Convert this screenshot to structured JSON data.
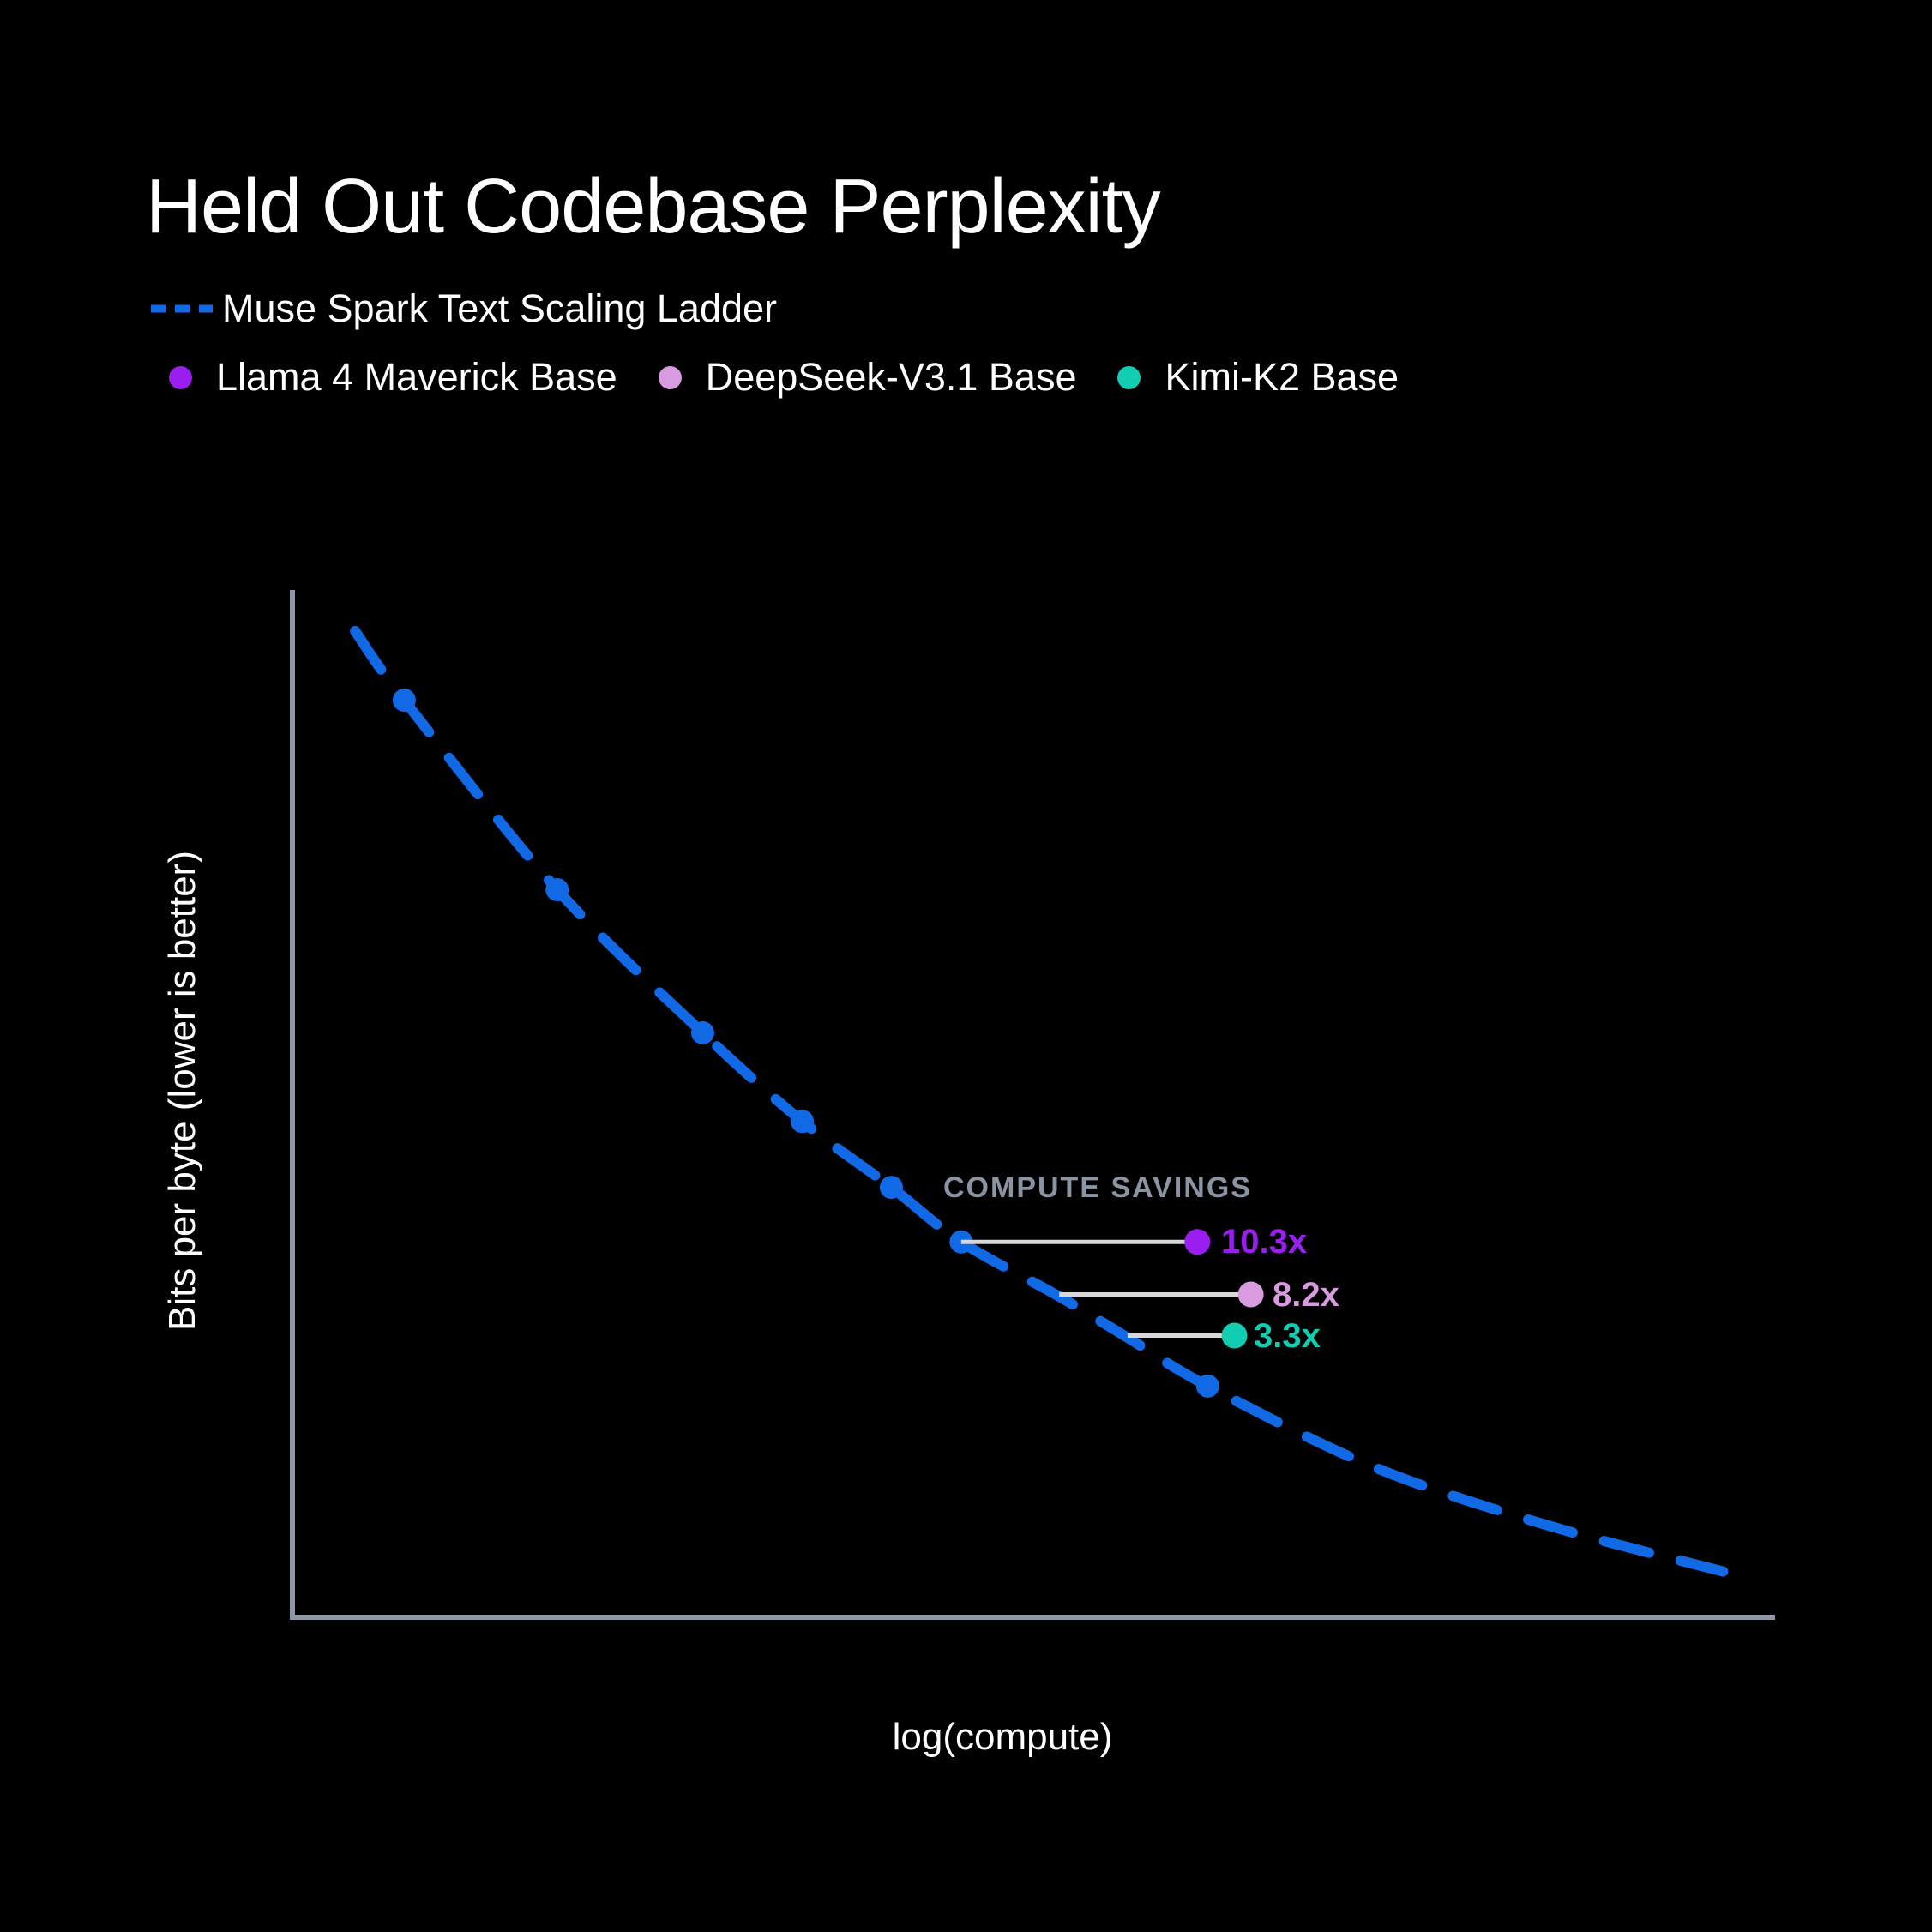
{
  "title": "Held Out Codebase Perplexity",
  "legend": {
    "ladder": {
      "label": "Muse Spark Text Scaling Ladder",
      "color": "#1169E6",
      "swatch": "dashed-line"
    },
    "models": [
      {
        "label": "Llama 4 Maverick Base",
        "color": "#9B1EF0"
      },
      {
        "label": "DeepSeek-V3.1 Base",
        "color": "#D89BDF"
      },
      {
        "label": "Kimi-K2 Base",
        "color": "#11CDB2"
      }
    ]
  },
  "axes": {
    "x_label": "log(compute)",
    "y_label": "Bits per byte (lower is better)",
    "axis_color": "#8E98A4",
    "tick_labels_visible": false
  },
  "annotation": {
    "heading": "COMPUTE SAVINGS",
    "heading_color": "#8A94A2",
    "connector_color": "#D8D8DC"
  },
  "chart_data": {
    "type": "line",
    "title": "Held Out Codebase Perplexity",
    "xlabel": "log(compute)",
    "ylabel": "Bits per byte (lower is better)",
    "grid": false,
    "legend_position": "top-left",
    "axis_ranges": "unlabeled (qualitative log-compute vs bits-per-byte)",
    "series": [
      {
        "name": "Muse Spark Text Scaling Ladder",
        "style": "dashed",
        "color": "#1169E6",
        "points_frac": [
          [
            0.044,
            0.04
          ],
          [
            0.077,
            0.107
          ],
          [
            0.18,
            0.291
          ],
          [
            0.278,
            0.43
          ],
          [
            0.345,
            0.516
          ],
          [
            0.405,
            0.58
          ],
          [
            0.452,
            0.633
          ],
          [
            0.518,
            0.686
          ],
          [
            0.564,
            0.726
          ],
          [
            0.618,
            0.773
          ],
          [
            0.729,
            0.851
          ],
          [
            0.844,
            0.907
          ],
          [
            0.965,
            0.953
          ]
        ],
        "marker_indices": [
          1,
          2,
          3,
          4,
          5,
          6,
          9
        ]
      }
    ],
    "compute_savings": [
      {
        "model": "Llama 4 Maverick Base",
        "value": "10.3x",
        "color": "#9B1EF0",
        "y_frac": 0.633,
        "x_start_frac": 0.452,
        "x_end_frac": 0.611
      },
      {
        "model": "DeepSeek-V3.1 Base",
        "value": "8.2x",
        "color": "#D89BDF",
        "y_frac": 0.684,
        "x_start_frac": 0.518,
        "x_end_frac": 0.647
      },
      {
        "model": "Kimi-K2 Base",
        "value": "3.3x",
        "color": "#11CDB2",
        "y_frac": 0.724,
        "x_start_frac": 0.564,
        "x_end_frac": 0.636
      }
    ]
  }
}
